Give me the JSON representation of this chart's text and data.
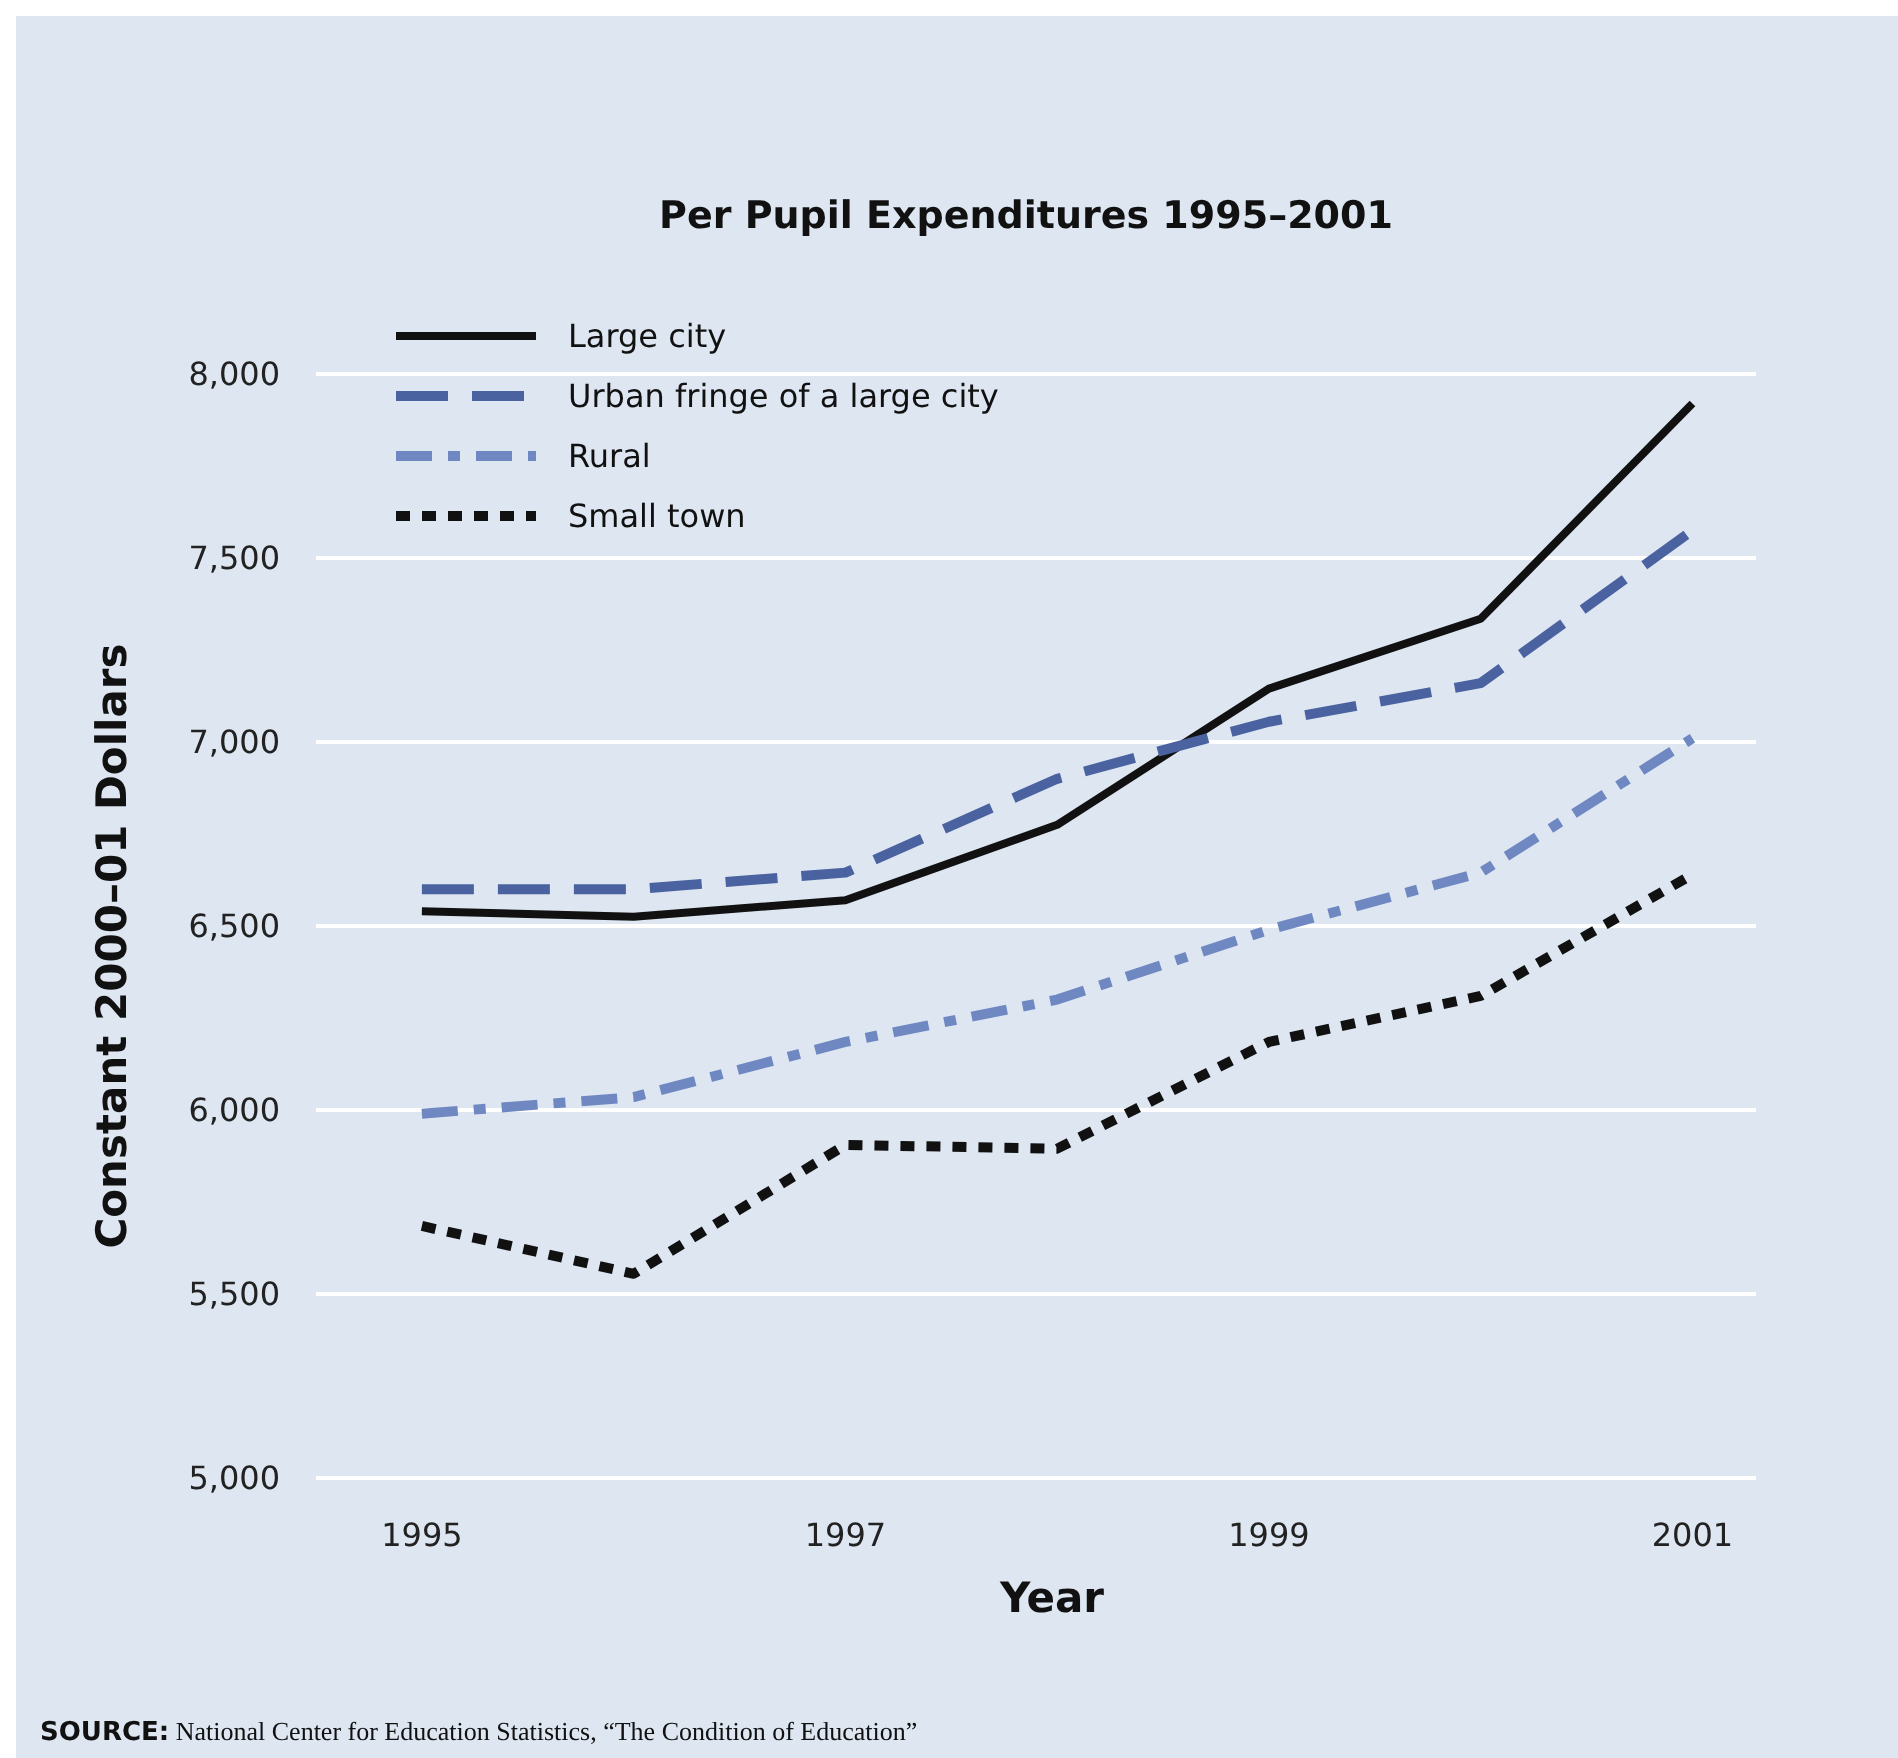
{
  "chart_data": {
    "type": "line",
    "title": "Per Pupil Expenditures 1995–2001",
    "xlabel": "Year",
    "ylabel": "Constant 2000–01 Dollars",
    "x": [
      1995,
      1996,
      1997,
      1998,
      1999,
      2000,
      2001
    ],
    "xlim": [
      1994.5,
      2001.3
    ],
    "xticks": [
      1995,
      1997,
      1999,
      2001
    ],
    "ylim": [
      5000,
      8000
    ],
    "yticks": [
      {
        "value": 5000,
        "label": "5,000"
      },
      {
        "value": 5500,
        "label": "5,500"
      },
      {
        "value": 6000,
        "label": "6,000"
      },
      {
        "value": 6500,
        "label": "6,500"
      },
      {
        "value": 7000,
        "label": "7,000"
      },
      {
        "value": 7500,
        "label": "7,500"
      },
      {
        "value": 8000,
        "label": "8,000"
      }
    ],
    "grid": "y",
    "legend": "top left",
    "marker": "none",
    "series": [
      {
        "name": "Large city",
        "color": "#111111",
        "line_style": "solid",
        "values": [
          6540,
          6525,
          6570,
          6775,
          7145,
          7335,
          7920
        ]
      },
      {
        "name": "Urban fringe of a large city",
        "color": "#4a62a0",
        "line_style": "dashed",
        "values": [
          6600,
          6600,
          6645,
          6900,
          7055,
          7160,
          7575
        ]
      },
      {
        "name": "Rural",
        "color": "#6f88c2",
        "line_style": "dashdot",
        "values": [
          5990,
          6035,
          6185,
          6300,
          6490,
          6645,
          7010
        ]
      },
      {
        "name": "Small town",
        "color": "#111111",
        "line_style": "dotted",
        "values": [
          5685,
          5555,
          5905,
          5895,
          6185,
          6310,
          6640
        ]
      }
    ],
    "annotations": [
      "SOURCE: National Center for Education Statistics, “The Condition of Education”"
    ]
  }
}
